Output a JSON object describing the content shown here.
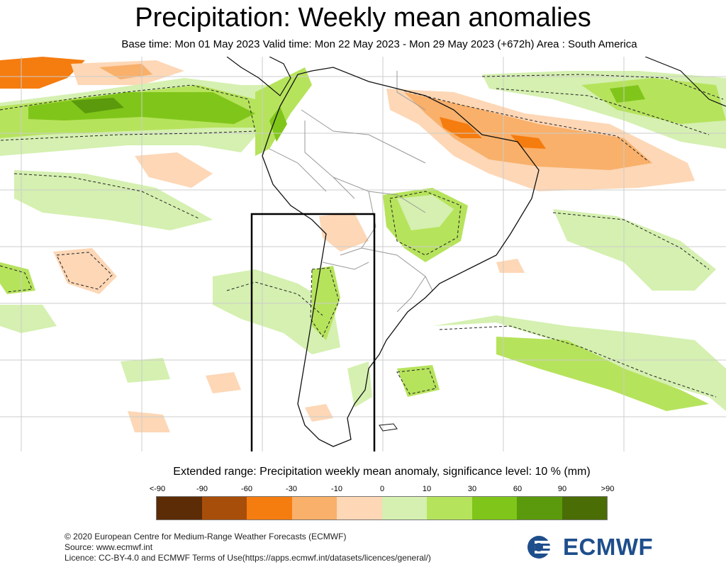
{
  "header": {
    "title": "Precipitation: Weekly mean anomalies",
    "subtitle": "Base time: Mon 01 May 2023 Valid time: Mon 22 May 2023 - Mon 29 May 2023 (+672h) Area : South America"
  },
  "legend": {
    "title": "Extended range: Precipitation weekly mean anomaly, significance level: 10 % (mm)",
    "labels": [
      "<-90",
      "-90",
      "-60",
      "-30",
      "-10",
      "0",
      "10",
      "30",
      "60",
      "90",
      ">90"
    ],
    "colors": [
      "#5c2c06",
      "#a84e0b",
      "#f57c0f",
      "#f9b06a",
      "#fdd7b6",
      "#d5f0b0",
      "#b6e35c",
      "#80c61a",
      "#5b9a0c",
      "#4a6d05"
    ]
  },
  "map": {
    "area": "South America",
    "highlight_box": true,
    "colors": {
      "ocean": "#ffffff",
      "coast": "#111111",
      "border": "#999999",
      "grid": "#cccccc",
      "contour": "#222222"
    }
  },
  "footer": {
    "line1": "© 2020 European Centre for Medium-Range Weather Forecasts (ECMWF)",
    "line2": "Source: www.ecmwf.int",
    "line3": "Licence: CC-BY-4.0 and ECMWF Terms of Use(https://apps.ecmwf.int/datasets/licences/general/)"
  },
  "logo": {
    "text": "ECMWF",
    "color": "#1e4e8c",
    "icon": "ecmwf-logo-icon"
  }
}
